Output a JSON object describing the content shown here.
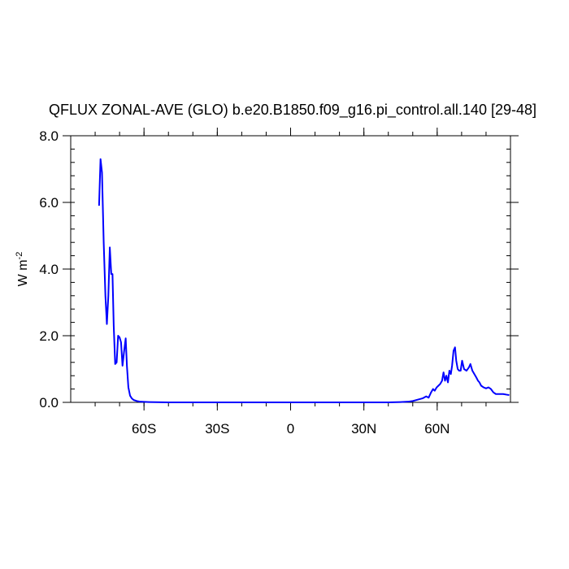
{
  "chart_data": {
    "type": "line",
    "title": "QFLUX ZONAL-AVE (GLO) b.e20.B1850.f09_g16.pi_control.all.140 [29-48]",
    "ylabel": "W m",
    "ylabel_superscript": "-2",
    "xlim": [
      -90,
      90
    ],
    "ylim": [
      0,
      8
    ],
    "grid": false,
    "x_ticks": [
      {
        "value": -60,
        "label": "60S"
      },
      {
        "value": -30,
        "label": "30S"
      },
      {
        "value": 0,
        "label": "0"
      },
      {
        "value": 30,
        "label": "30N"
      },
      {
        "value": 60,
        "label": "60N"
      }
    ],
    "y_ticks": [
      {
        "value": 0,
        "label": "0.0"
      },
      {
        "value": 2,
        "label": "2.0"
      },
      {
        "value": 4,
        "label": "4.0"
      },
      {
        "value": 6,
        "label": "6.0"
      },
      {
        "value": 8,
        "label": "8.0"
      }
    ],
    "series": [
      {
        "color": "#0000ff",
        "x": [
          -78.4,
          -77.8,
          -77.2,
          -76.5,
          -75.8,
          -75.2,
          -74.6,
          -74.0,
          -73.4,
          -72.9,
          -72.4,
          -71.8,
          -71.2,
          -70.6,
          -70.0,
          -69.4,
          -68.8,
          -68.2,
          -67.5,
          -67.0,
          -66.4,
          -65.7,
          -65.0,
          -64.2,
          -63.0,
          -61.5,
          -58.0,
          -50.0,
          -40.0,
          -30.0,
          -20.0,
          -10.0,
          0.0,
          10.0,
          20.0,
          30.0,
          40.0,
          45.0,
          48.0,
          50.0,
          52.0,
          54.0,
          55.5,
          56.5,
          57.5,
          58.3,
          59.0,
          59.8,
          60.5,
          61.2,
          62.0,
          62.6,
          63.2,
          63.8,
          64.4,
          65.0,
          65.6,
          66.1,
          66.7,
          67.3,
          67.8,
          68.4,
          69.0,
          69.6,
          70.2,
          71.0,
          72.0,
          73.0,
          73.6,
          74.4,
          75.2,
          76.0,
          76.7,
          77.3,
          78.0,
          79.0,
          80.0,
          81.0,
          82.0,
          83.0,
          84.0,
          85.0,
          86.0,
          87.0,
          88.5,
          89.5
        ],
        "y": [
          5.9,
          7.3,
          6.9,
          4.8,
          3.2,
          2.35,
          3.2,
          4.65,
          3.85,
          3.85,
          2.3,
          1.15,
          1.2,
          2.0,
          1.95,
          1.8,
          1.1,
          1.5,
          1.92,
          1.1,
          0.45,
          0.2,
          0.12,
          0.07,
          0.04,
          0.02,
          0.01,
          0.0,
          0.0,
          0.0,
          0.0,
          0.0,
          0.0,
          0.0,
          0.0,
          0.0,
          0.0,
          0.01,
          0.02,
          0.04,
          0.08,
          0.12,
          0.18,
          0.14,
          0.3,
          0.4,
          0.35,
          0.45,
          0.5,
          0.55,
          0.65,
          0.9,
          0.65,
          0.8,
          0.6,
          0.95,
          0.85,
          1.1,
          1.55,
          1.65,
          1.25,
          1.0,
          0.95,
          0.95,
          1.25,
          1.0,
          0.95,
          1.05,
          1.15,
          0.95,
          0.85,
          0.75,
          0.65,
          0.6,
          0.5,
          0.45,
          0.42,
          0.45,
          0.4,
          0.3,
          0.25,
          0.25,
          0.25,
          0.25,
          0.23,
          0.22
        ]
      }
    ]
  }
}
